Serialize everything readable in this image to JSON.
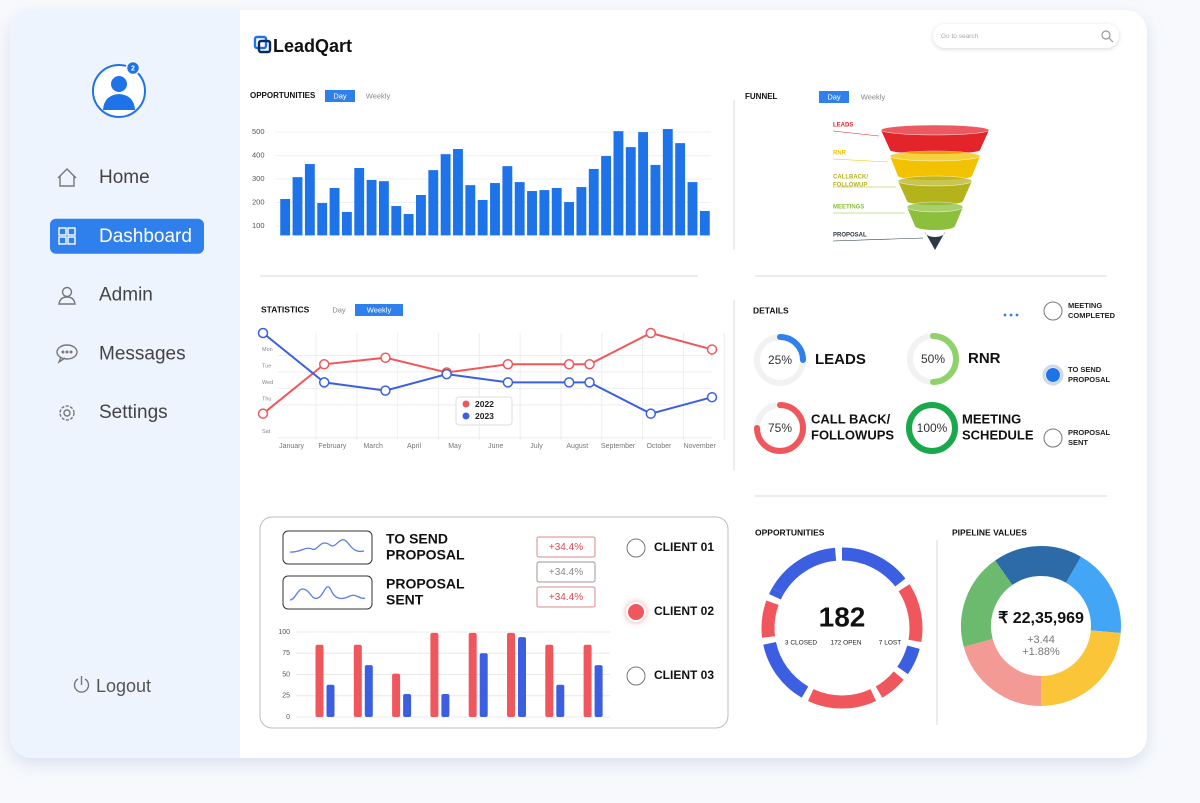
{
  "sidebar": {
    "badge": "2",
    "nav": [
      "Home",
      "Dashboard",
      "Admin",
      "Messages",
      "Settings"
    ],
    "active": "Dashboard",
    "logout": "Logout"
  },
  "header": {
    "brand": "LeadQart",
    "search_placeholder": "Go to search"
  },
  "opportunities_chart": {
    "type": "bar",
    "title": "OPPORTUNITIES",
    "tabs": [
      "Day",
      "Weekly"
    ],
    "active_tab": "Day",
    "values": [
      215,
      308,
      364,
      198,
      262,
      160,
      347,
      296,
      291,
      185,
      151,
      232,
      338,
      406,
      428,
      274,
      211,
      283,
      355,
      287,
      249,
      253,
      262,
      202,
      266,
      343,
      398,
      504,
      436,
      500,
      360,
      513,
      453,
      287,
      164
    ],
    "color": "#1f73e8",
    "ylim": [
      60,
      560
    ],
    "yticks": [
      100,
      200,
      300,
      400,
      500
    ],
    "grid": true
  },
  "funnel": {
    "title": "FUNNEL",
    "tabs": [
      "Day",
      "Weekly"
    ],
    "active_tab": "Day",
    "labels": [
      [
        "LEADS"
      ],
      [
        "RNR"
      ],
      [
        "CALLBACK/",
        "FOLLOWUP"
      ],
      [
        "MEETINGS"
      ],
      [
        "PROPOSAL"
      ]
    ],
    "colors": [
      "#e3242b",
      "#f2c200",
      "#b5b31c",
      "#8bbf3c",
      "#2b3a42"
    ]
  },
  "statistics_chart": {
    "type": "line",
    "title": "STATISTICS",
    "tabs": [
      "Day",
      "Weekly"
    ],
    "active_tab": "Weekly",
    "categories": [
      "January",
      "February",
      "March",
      "April",
      "May",
      "June",
      "July",
      "August",
      "September",
      "October",
      "November"
    ],
    "xlim": [
      0,
      11
    ],
    "ylim": [
      0,
      6.5
    ],
    "yticks": [
      {
        "value": 1,
        "label": "Mon"
      },
      {
        "value": 2,
        "label": "Tue"
      },
      {
        "value": 3,
        "label": "Wed"
      },
      {
        "value": 4,
        "label": "Thu"
      },
      {
        "value": 6,
        "label": "Sat"
      }
    ],
    "series": [
      {
        "name": "2022",
        "color": "#f0575c",
        "x": [
          0,
          1.5,
          3,
          4.5,
          6,
          7.5,
          8,
          9.5,
          11
        ],
        "values": [
          4.9,
          1.9,
          1.5,
          2.4,
          1.9,
          1.9,
          1.9,
          0,
          1
        ]
      },
      {
        "name": "2023",
        "color": "#3b5fe0",
        "x": [
          0,
          1.5,
          3,
          4.5,
          6,
          7.5,
          8,
          9.5,
          11
        ],
        "values": [
          0,
          3,
          3.5,
          2.5,
          3,
          3,
          3,
          4.9,
          3.9
        ]
      }
    ],
    "grid": true
  },
  "details": {
    "title": "DETAILS",
    "labels": [
      [
        "LEADS"
      ],
      [
        "RNR"
      ],
      [
        "CALL BACK/",
        "FOLLOWUPS"
      ],
      [
        "MEETING",
        "SCHEDULE"
      ]
    ],
    "values": [
      25,
      50,
      75,
      100
    ],
    "value_labels": [
      "25%",
      "50%",
      "75%",
      "100%"
    ],
    "colors": [
      "#2f80ed",
      "#8fd16a",
      "#f0575c",
      "#19a84a"
    ],
    "options": [
      [
        "MEETING",
        "COMPLETED"
      ],
      [
        "TO SEND",
        "PROPOSAL"
      ],
      [
        "PROPOSAL",
        "SENT"
      ]
    ],
    "selected_option": 1
  },
  "clients_panel": {
    "items": [
      [
        "TO SEND",
        "PROPOSAL"
      ],
      [
        "PROPOSAL",
        "SENT"
      ]
    ],
    "values": [
      34.4,
      34.4,
      34.4
    ],
    "value_labels": [
      "+34.4%",
      "+34.4%",
      "+34.4%"
    ],
    "value_colors": [
      "#e0474c",
      "#888888",
      "#e0474c"
    ],
    "chart": {
      "type": "bar",
      "ylim": [
        0,
        100
      ],
      "yticks": [
        0,
        25,
        50,
        75,
        100
      ],
      "grid": true,
      "series": [
        {
          "color": "#f0575c",
          "values": [
            85,
            85,
            51,
            99,
            99,
            99,
            85,
            85
          ]
        },
        {
          "color": "#3b5fe0",
          "values": [
            38,
            61,
            27,
            27,
            75,
            94,
            38,
            61
          ]
        }
      ]
    },
    "clients": [
      "CLIENT 01",
      "CLIENT 02",
      "CLIENT 03"
    ],
    "selected_client": 1
  },
  "opportunities_donut": {
    "title": "OPPORTUNITIES",
    "total": 182,
    "stats": [
      "3 CLOSED",
      "172 OPEN",
      "7 LOST"
    ]
  },
  "pipeline": {
    "title": "PIPELINE VALUES",
    "total": "₹ 22,35,969",
    "change": "+3.44",
    "change_pct": "+1.88%"
  }
}
